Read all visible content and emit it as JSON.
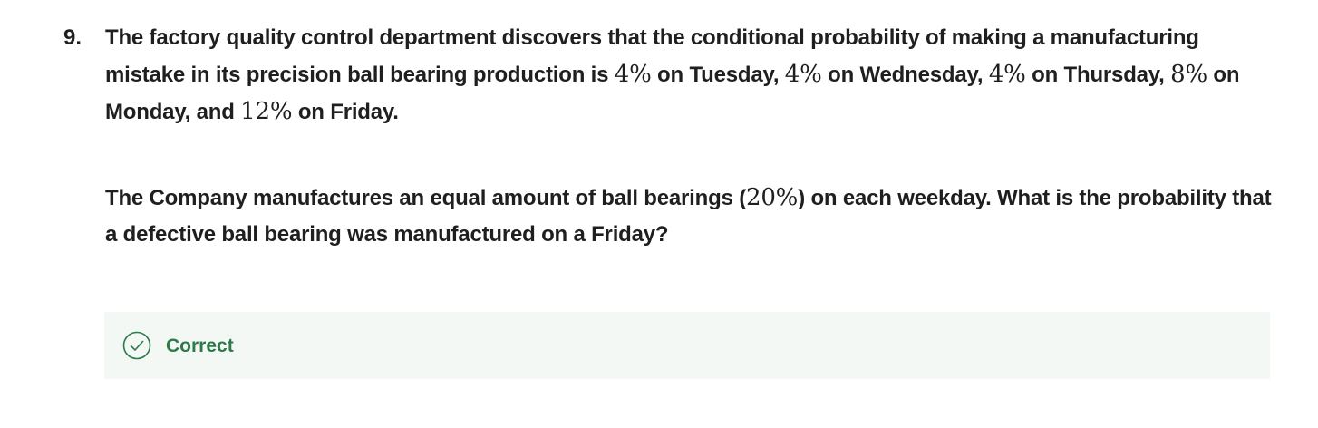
{
  "question": {
    "number": "9.",
    "paragraph1": [
      {
        "type": "text",
        "value": "The factory quality control department discovers that the conditional probability of making a manufacturing mistake in its precision ball bearing production is "
      },
      {
        "type": "math",
        "value": "4%"
      },
      {
        "type": "text",
        "value": " on Tuesday, "
      },
      {
        "type": "math",
        "value": "4%"
      },
      {
        "type": "text",
        "value": " on Wednesday, "
      },
      {
        "type": "math",
        "value": "4%"
      },
      {
        "type": "text",
        "value": " on Thursday, "
      },
      {
        "type": "math",
        "value": "8%"
      },
      {
        "type": "text",
        "value": " on Monday, and "
      },
      {
        "type": "math",
        "value": "12%"
      },
      {
        "type": "text",
        "value": " on Friday."
      }
    ],
    "paragraph2": [
      {
        "type": "text",
        "value": "The Company manufactures an equal amount of ball bearings ("
      },
      {
        "type": "math",
        "value": "20%"
      },
      {
        "type": "text",
        "value": ") on each weekday.  What is the probability that a defective ball bearing was manufactured on a Friday?"
      }
    ]
  },
  "feedback": {
    "label": "Correct",
    "icon": "check-circle-icon",
    "color": "#2d7a4a",
    "background": "#f3f8f4"
  }
}
